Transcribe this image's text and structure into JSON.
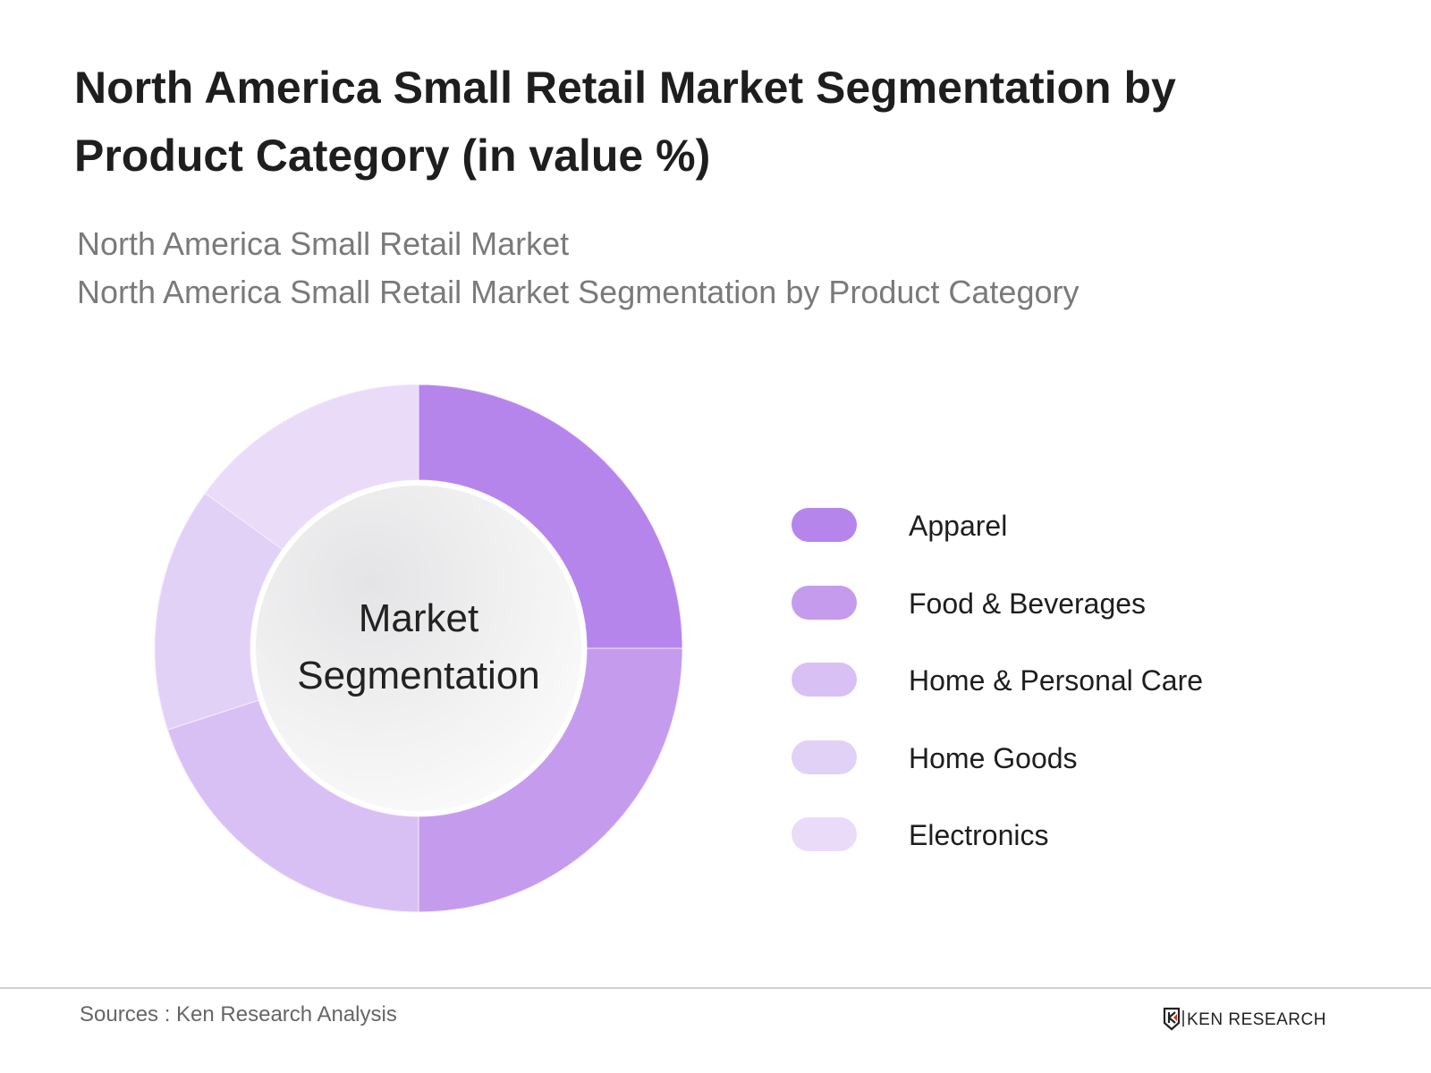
{
  "title": "North America Small Retail Market Segmentation by Product Category (in value %)",
  "subtitles": [
    "North America Small Retail Market",
    "North America Small Retail Market Segmentation by Product Category"
  ],
  "center_label": [
    "Market",
    "Segmentation"
  ],
  "source": "Sources : Ken Research Analysis",
  "logo_text": "KEN RESEARCH",
  "chart_data": {
    "type": "pie",
    "variant": "donut",
    "start_angle": "top, clockwise",
    "legend_position": "right",
    "title": "North America Small Retail Market Segmentation by Product Category (in value %)",
    "categories": [
      "Apparel",
      "Food & Beverages",
      "Home & Personal Care",
      "Home Goods",
      "Electronics"
    ],
    "values": [
      25,
      25,
      20,
      15,
      15
    ],
    "colors": [
      "#b585ec",
      "#c59ced",
      "#d9c0f4",
      "#e2d1f6",
      "#eadcf9"
    ]
  }
}
